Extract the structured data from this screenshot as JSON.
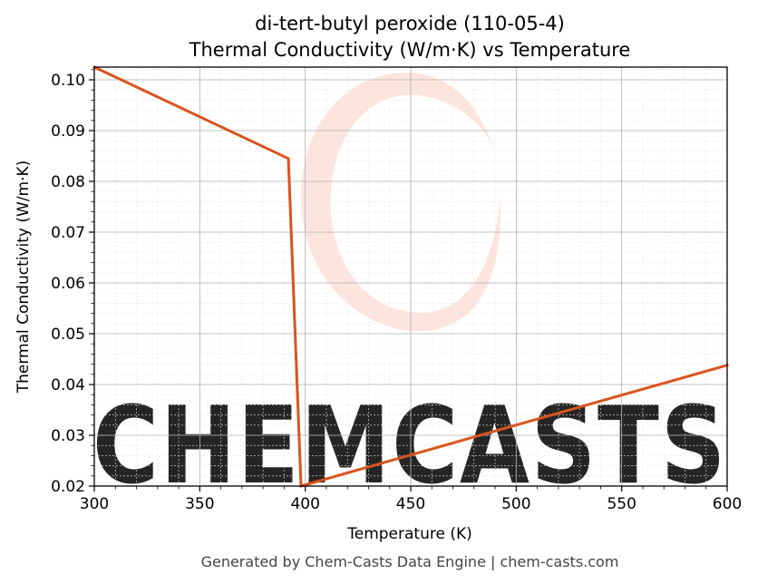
{
  "chart_data": {
    "type": "line",
    "title": "di-tert-butyl peroxide (110-05-4)",
    "subtitle": "Thermal Conductivity (W/m·K) vs Temperature",
    "xlabel": "Temperature (K)",
    "ylabel": "Thermal Conductivity (W/m·K)",
    "xlim": [
      300,
      600
    ],
    "ylim": [
      0.02,
      0.1025
    ],
    "x_ticks": [
      300,
      350,
      400,
      450,
      500,
      550,
      600
    ],
    "y_ticks": [
      0.02,
      0.03,
      0.04,
      0.05,
      0.06,
      0.07,
      0.08,
      0.09,
      0.1
    ],
    "x_tick_labels": [
      "300",
      "350",
      "400",
      "450",
      "500",
      "550",
      "600"
    ],
    "y_tick_labels": [
      "0.02",
      "0.03",
      "0.04",
      "0.05",
      "0.06",
      "0.07",
      "0.08",
      "0.09",
      "0.10"
    ],
    "grid": true,
    "series": [
      {
        "color": "#d9541e",
        "x": [
          300,
          392,
          398,
          600
        ],
        "y": [
          0.1025,
          0.0845,
          0.02,
          0.0438
        ]
      }
    ]
  },
  "watermark": {
    "text": "CHEMCASTS",
    "color": "#fde0d8"
  },
  "footer": "Generated by Chem-Casts Data Engine | chem-casts.com"
}
